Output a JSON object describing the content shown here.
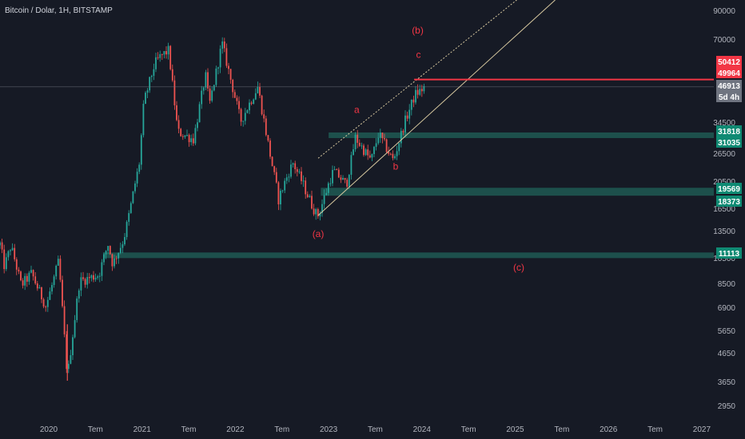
{
  "header": {
    "title": "Bitcoin / Dolar, 1H, BITSTAMP"
  },
  "colors": {
    "background": "#161a25",
    "axis_text": "#b2b5be",
    "candle_up": "#26a69a",
    "candle_down": "#ef5350",
    "zone": "#1e5a53",
    "zone_label": "#0f8a73",
    "resistance": "#f23645",
    "channel": "#d8c9a0",
    "wave_label": "#f23645",
    "price_line": "#787b86"
  },
  "chart_data": {
    "type": "candlestick",
    "title": "Bitcoin / Dolar, 1H, BITSTAMP",
    "y_scale": "log",
    "ylim": [
      2600,
      100000
    ],
    "y_ticks": [
      90000,
      70000,
      34500,
      26500,
      20500,
      16500,
      13500,
      10500,
      8500,
      6900,
      5650,
      4650,
      3650,
      2950
    ],
    "x_ticks": [
      "2020",
      "Tem",
      "2021",
      "Tem",
      "2022",
      "Tem",
      "2023",
      "Tem",
      "2024",
      "Tem",
      "2025",
      "Tem",
      "2026",
      "Tem",
      "2027"
    ],
    "price_path": [
      [
        "2019-06",
        9500
      ],
      [
        "2019-06-20",
        12500
      ],
      [
        "2019-07-10",
        9800
      ],
      [
        "2019-08-05",
        11800
      ],
      [
        "2019-09-15",
        8400
      ],
      [
        "2019-10-25",
        9300
      ],
      [
        "2019-12-20",
        7000
      ],
      [
        "2020-02-10",
        10300
      ],
      [
        "2020-03-13",
        3800
      ],
      [
        "2020-04-30",
        8700
      ],
      [
        "2020-07-15",
        9200
      ],
      [
        "2020-08-20",
        12000
      ],
      [
        "2020-09-08",
        10000
      ],
      [
        "2020-10-20",
        12500
      ],
      [
        "2020-12-20",
        24000
      ],
      [
        "2021-01-08",
        41000
      ],
      [
        "2021-02-20",
        57000
      ],
      [
        "2021-03-14",
        61000
      ],
      [
        "2021-04-14",
        64000
      ],
      [
        "2021-05-19",
        32000
      ],
      [
        "2021-07-20",
        30000
      ],
      [
        "2021-09-06",
        52000
      ],
      [
        "2021-09-21",
        40000
      ],
      [
        "2021-11-10",
        68000
      ],
      [
        "2022-01-22",
        35000
      ],
      [
        "2022-03-28",
        47000
      ],
      [
        "2022-06-18",
        17800
      ],
      [
        "2022-08-13",
        24500
      ],
      [
        "2022-10-01",
        19300
      ],
      [
        "2022-11-10",
        16000
      ],
      [
        "2022-11-21",
        15600
      ],
      [
        "2023-01-20",
        22800
      ],
      [
        "2023-03-10",
        20000
      ],
      [
        "2023-04-14",
        30500
      ],
      [
        "2023-06-15",
        25000
      ],
      [
        "2023-07-14",
        31500
      ],
      [
        "2023-09-11",
        25000
      ],
      [
        "2023-10-24",
        34500
      ],
      [
        "2023-12-05",
        44000
      ],
      [
        "2024-01-02",
        45900
      ],
      [
        "2024-01-11",
        46913
      ]
    ],
    "horizontal_zones": [
      {
        "top": 31818,
        "bottom": 31035,
        "from": "2023-01"
      },
      {
        "top": 19569,
        "bottom": 18373,
        "from": "2022-12"
      },
      {
        "top": 11113,
        "bottom": 10800,
        "from": "2020-08"
      }
    ],
    "resistance_line": {
      "value": 49964,
      "from": "2023-12"
    },
    "channel": {
      "lower": [
        [
          "2022-11-21",
          15600
        ],
        [
          "2023-12-01",
          33000
        ]
      ],
      "upper": [
        [
          "2022-11-21",
          25500
        ],
        [
          "2023-12-01",
          49000
        ]
      ]
    },
    "wave_labels": [
      {
        "text": "(b)",
        "date": "2023-12-15",
        "price": 74000
      },
      {
        "text": "c",
        "date": "2023-12-18",
        "price": 60000
      },
      {
        "text": "a",
        "date": "2023-04-20",
        "price": 37500
      },
      {
        "text": "b",
        "date": "2023-09-20",
        "price": 23000
      },
      {
        "text": "(a)",
        "date": "2022-11-21",
        "price": 12800
      },
      {
        "text": "(c)",
        "date": "2025-01-15",
        "price": 9500
      }
    ]
  },
  "price_labels": {
    "p50412": "50412",
    "p49964": "49964",
    "p46913": "46913",
    "countdown": "5d 4h",
    "p31818": "31818",
    "p31035": "31035",
    "p19569": "19569",
    "p18373": "18373",
    "p11113": "11113"
  }
}
